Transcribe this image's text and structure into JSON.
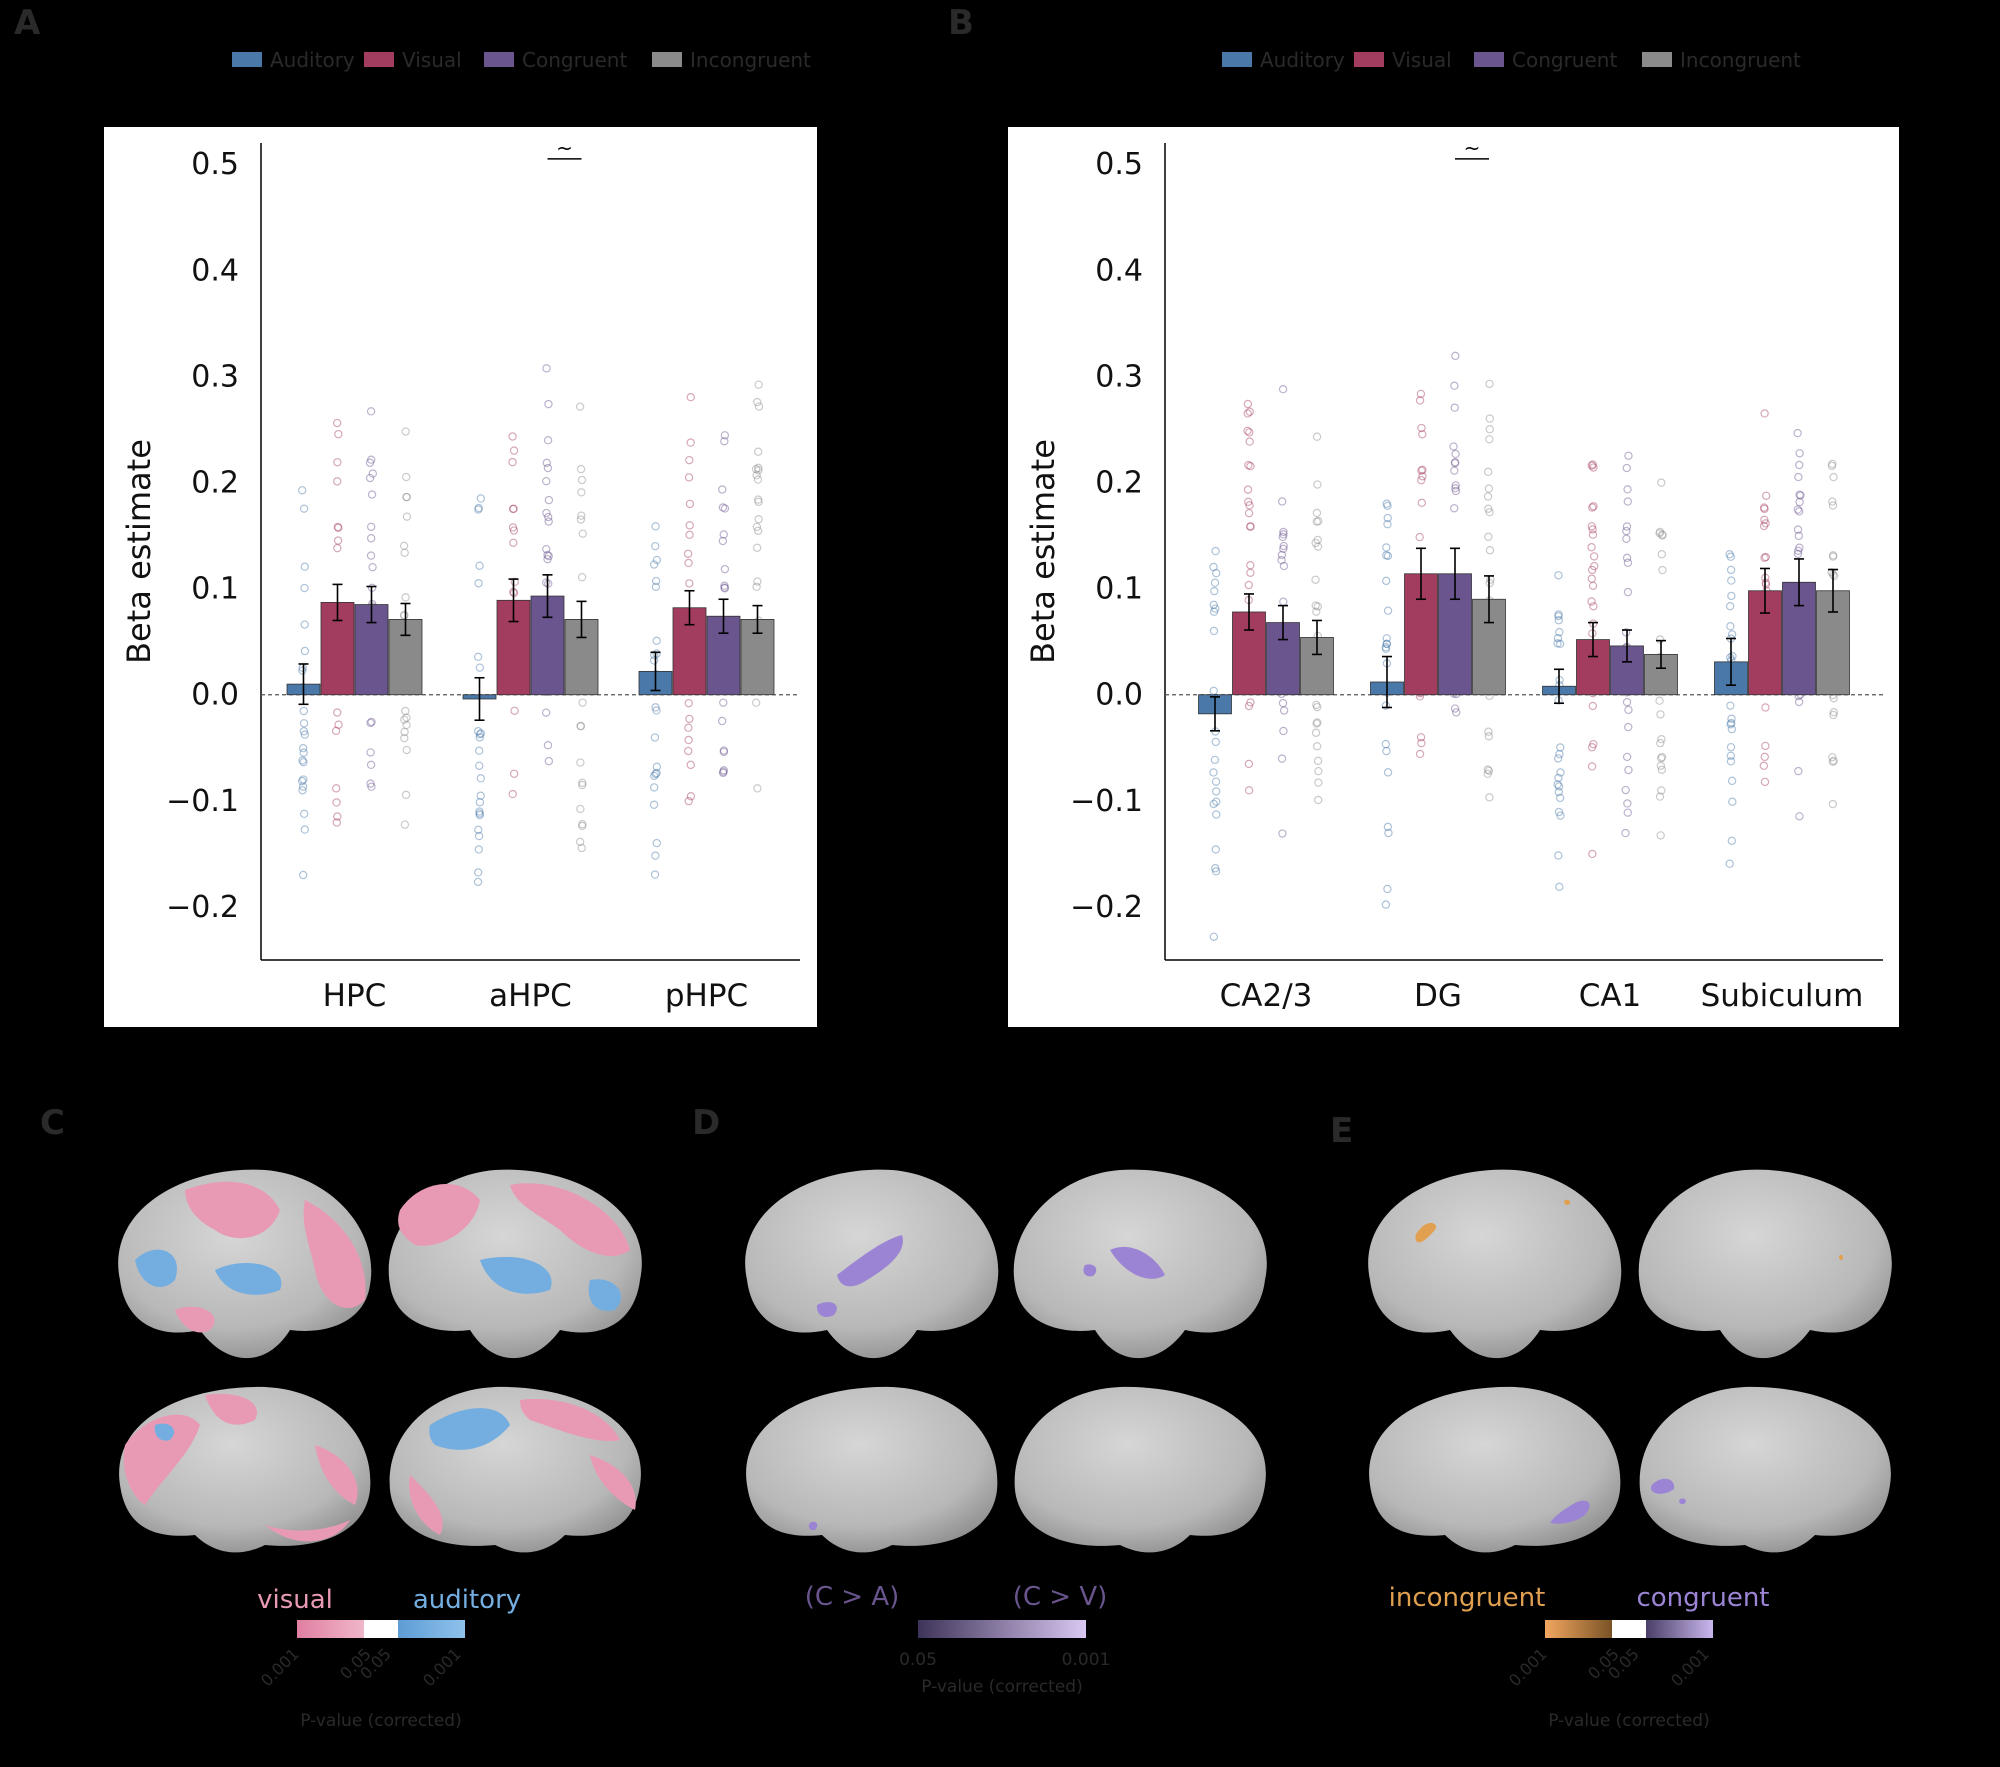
{
  "colors": {
    "auditory": "#4a78a8",
    "visual": "#a33d60",
    "congruent": "#6a558f",
    "incongruent": "#8a8a8a",
    "visual_map": "#e89ab4",
    "auditory_map": "#74aee0",
    "congruent_map": "#9b84d4",
    "incongruent_map": "#e0a050",
    "brain": "#c2c2c2"
  },
  "panel_letters": {
    "a": "A",
    "b": "B",
    "c": "C",
    "d": "D",
    "e": "E"
  },
  "chart_data": [
    {
      "type": "bar",
      "panel": "A",
      "categories": [
        "HPC",
        "aHPC",
        "pHPC"
      ],
      "ylabel": "Beta estimate",
      "ylim": [
        -0.25,
        0.5
      ],
      "yticks": [
        "0.5",
        "0.4",
        "0.3",
        "0.2",
        "0.1",
        "0.0",
        "−0.1",
        "−0.2"
      ],
      "yticks_values": [
        0.5,
        0.4,
        0.3,
        0.2,
        0.1,
        0.0,
        -0.1,
        -0.2
      ],
      "legend": [
        "Auditory",
        "Visual",
        "Congruent",
        "Incongruent"
      ],
      "series": [
        {
          "name": "Auditory",
          "values": [
            0.01,
            -0.004,
            0.022
          ],
          "errors": [
            0.019,
            0.02,
            0.018
          ]
        },
        {
          "name": "Visual",
          "values": [
            0.087,
            0.089,
            0.082
          ],
          "errors": [
            0.017,
            0.02,
            0.016
          ]
        },
        {
          "name": "Congruent",
          "values": [
            0.085,
            0.093,
            0.074
          ],
          "errors": [
            0.017,
            0.02,
            0.016
          ]
        },
        {
          "name": "Incongruent",
          "values": [
            0.071,
            0.071,
            0.071
          ],
          "errors": [
            0.015,
            0.017,
            0.013
          ]
        }
      ],
      "significance": {
        "label": "~",
        "category": "aHPC",
        "from_series": "Congruent",
        "to_series": "Incongruent",
        "y": 0.505
      }
    },
    {
      "type": "bar",
      "panel": "B",
      "categories": [
        "CA2/3",
        "DG",
        "CA1",
        "Subiculum"
      ],
      "ylabel": "Beta estimate",
      "ylim": [
        -0.25,
        0.5
      ],
      "yticks": [
        "0.5",
        "0.4",
        "0.3",
        "0.2",
        "0.1",
        "0.0",
        "−0.1",
        "−0.2"
      ],
      "yticks_values": [
        0.5,
        0.4,
        0.3,
        0.2,
        0.1,
        0.0,
        -0.1,
        -0.2
      ],
      "legend": [
        "Auditory",
        "Visual",
        "Congruent",
        "Incongruent"
      ],
      "series": [
        {
          "name": "Auditory",
          "values": [
            -0.018,
            0.012,
            0.008,
            0.031
          ],
          "errors": [
            0.016,
            0.024,
            0.016,
            0.022
          ]
        },
        {
          "name": "Visual",
          "values": [
            0.078,
            0.114,
            0.052,
            0.098
          ],
          "errors": [
            0.017,
            0.024,
            0.016,
            0.021
          ]
        },
        {
          "name": "Congruent",
          "values": [
            0.068,
            0.114,
            0.046,
            0.106
          ],
          "errors": [
            0.016,
            0.024,
            0.015,
            0.022
          ]
        },
        {
          "name": "Incongruent",
          "values": [
            0.054,
            0.09,
            0.038,
            0.098
          ],
          "errors": [
            0.016,
            0.022,
            0.013,
            0.02
          ]
        }
      ],
      "significance": {
        "label": "~",
        "category": "DG",
        "from_series": "Congruent",
        "to_series": "Incongruent",
        "y": 0.505
      }
    }
  ],
  "maps": {
    "c": {
      "left_label": "visual",
      "right_label": "auditory",
      "ticks": [
        "0.001",
        "0.05",
        "0.05",
        "0.001"
      ],
      "axis_label": "P-value (corrected)"
    },
    "d": {
      "left_label": "(C > A)",
      "right_label": "(C > V)",
      "ticks": [
        "0.05",
        "0.001"
      ],
      "axis_label": "P-value (corrected)"
    },
    "e": {
      "left_label": "incongruent",
      "right_label": "congruent",
      "ticks": [
        "0.001",
        "0.05",
        "0.05",
        "0.001"
      ],
      "axis_label": "P-value (corrected)"
    }
  }
}
